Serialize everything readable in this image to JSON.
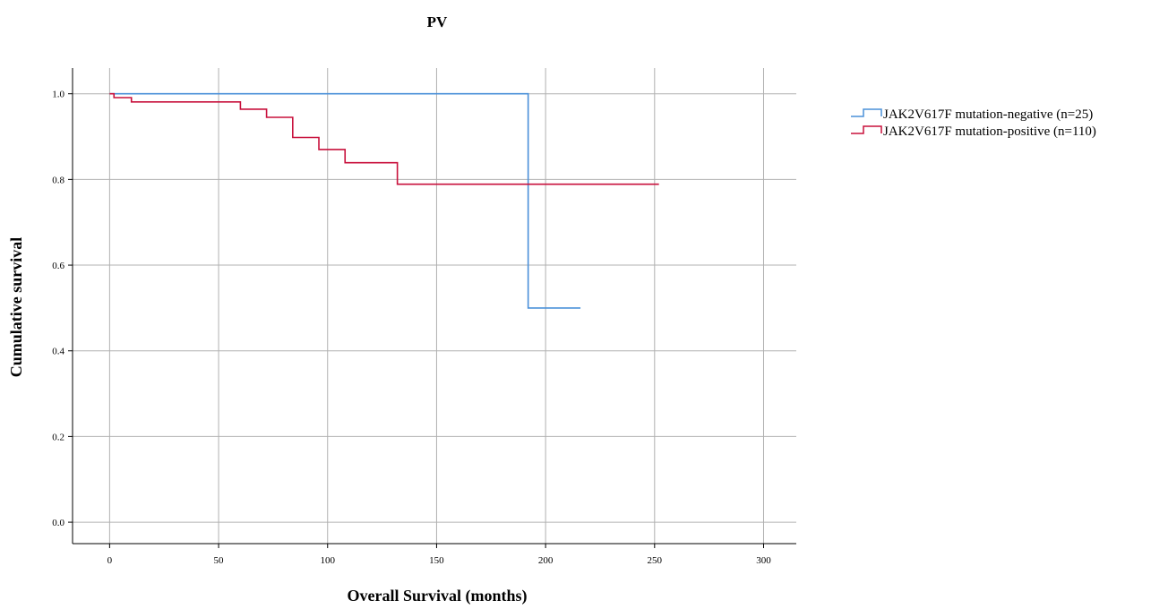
{
  "chart_data": {
    "type": "line",
    "title": "PV",
    "xlabel": "Overall Survival (months)",
    "ylabel": "Cumulative survival",
    "xlim": [
      -17,
      315
    ],
    "ylim": [
      -0.05,
      1.06
    ],
    "x_ticks": [
      0,
      50,
      100,
      150,
      200,
      250,
      300
    ],
    "x_tick_labels": [
      "0",
      "50",
      "100",
      "150",
      "200",
      "250",
      "300"
    ],
    "y_ticks": [
      0.0,
      0.2,
      0.4,
      0.6,
      0.8,
      1.0
    ],
    "y_tick_labels": [
      "0.0",
      "0.2",
      "0.4",
      "0.6",
      "0.8",
      "1.0"
    ],
    "grid": true,
    "legend_position": "right",
    "step": true,
    "series": [
      {
        "name": "JAK2V617F mutation-negative (n=25)",
        "color": "#4a90d9",
        "points": [
          [
            0,
            1.0
          ],
          [
            192,
            1.0
          ],
          [
            192,
            0.5
          ],
          [
            216,
            0.5
          ]
        ]
      },
      {
        "name": "JAK2V617F mutation-positive (n=110)",
        "color": "#c8103c",
        "points": [
          [
            0,
            1.0
          ],
          [
            2,
            1.0
          ],
          [
            2,
            0.991
          ],
          [
            10,
            0.991
          ],
          [
            10,
            0.981
          ],
          [
            60,
            0.981
          ],
          [
            60,
            0.964
          ],
          [
            72,
            0.964
          ],
          [
            72,
            0.945
          ],
          [
            84,
            0.945
          ],
          [
            84,
            0.898
          ],
          [
            96,
            0.898
          ],
          [
            96,
            0.87
          ],
          [
            108,
            0.87
          ],
          [
            108,
            0.839
          ],
          [
            132,
            0.839
          ],
          [
            132,
            0.789
          ],
          [
            252,
            0.789
          ]
        ]
      }
    ]
  }
}
